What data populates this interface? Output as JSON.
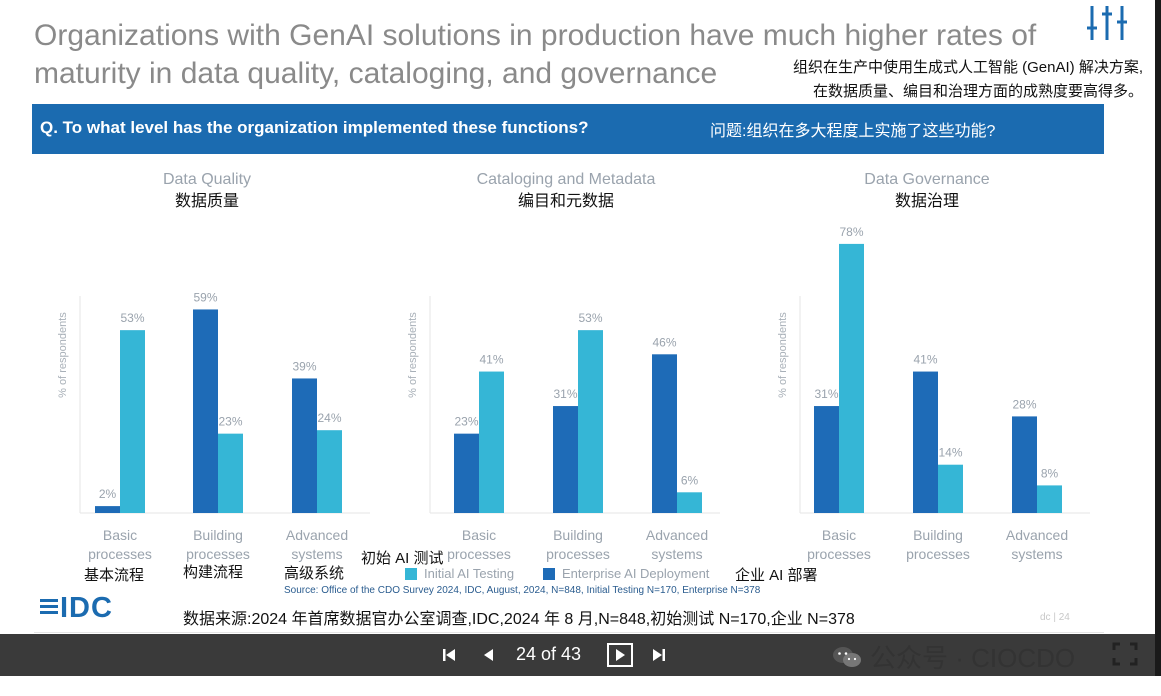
{
  "header": {
    "title_en_line1": "Organizations with GenAI solutions in production have much higher rates of",
    "title_en_line2": "maturity in data quality, cataloging, and governance",
    "title_zh_line1": "组织在生产中使用生成式人工智能 (GenAI) 解决方案,",
    "title_zh_line2": "在数据质量、编目和治理方面的成熟度要高得多。"
  },
  "question": {
    "en": "Q. To what level has the organization implemented these functions?",
    "zh": "问题:组织在多大程度上实施了这些功能?"
  },
  "colors": {
    "initial": "#35b6d6",
    "enterprise": "#1e6bb7",
    "accent": "#1b6bb0"
  },
  "chart_data": [
    {
      "type": "bar",
      "title": "Data Quality",
      "title_zh": "数据质量",
      "ylabel": "% of respondents",
      "categories": [
        "Basic processes",
        "Building processes",
        "Advanced systems"
      ],
      "ylim": [
        0,
        80
      ],
      "grid": false,
      "series": [
        {
          "name": "Enterprise AI Deployment",
          "values": [
            2,
            59,
            39
          ]
        },
        {
          "name": "Initial AI Testing",
          "values": [
            53,
            23,
            24
          ]
        }
      ]
    },
    {
      "type": "bar",
      "title": "Cataloging and Metadata",
      "title_zh": "编目和元数据",
      "ylabel": "% of respondents",
      "categories": [
        "Basic processes",
        "Building processes",
        "Advanced systems"
      ],
      "ylim": [
        0,
        80
      ],
      "grid": false,
      "series": [
        {
          "name": "Enterprise AI Deployment",
          "values": [
            23,
            31,
            46
          ]
        },
        {
          "name": "Initial AI Testing",
          "values": [
            41,
            53,
            6
          ]
        }
      ]
    },
    {
      "type": "bar",
      "title": "Data Governance",
      "title_zh": "数据治理",
      "ylabel": "% of respondents",
      "categories": [
        "Basic processes",
        "Building processes",
        "Advanced systems"
      ],
      "ylim": [
        0,
        80
      ],
      "grid": false,
      "series": [
        {
          "name": "Enterprise AI Deployment",
          "values": [
            31,
            41,
            28
          ]
        },
        {
          "name": "Initial AI Testing",
          "values": [
            78,
            14,
            8
          ]
        }
      ]
    }
  ],
  "category_labels_zh": [
    "基本流程",
    "构建流程",
    "高级系统"
  ],
  "legend": {
    "initial_en": "Initial AI Testing",
    "initial_zh": "初始 AI 测试",
    "enterprise_en": "Enterprise AI Deployment",
    "enterprise_zh": "企业 AI 部署"
  },
  "footer": {
    "source_en": "Source: Office of the CDO Survey 2024, IDC, August, 2024, N=848, Initial Testing N=170, Enterprise N=378",
    "source_zh": "数据来源:2024 年首席数据官办公室调查,IDC,2024 年 8 月,N=848,初始测试 N=170,企业 N=378",
    "brand": "IDC",
    "corner": "dc | 24"
  },
  "toolbar": {
    "first_icon": "skip-first-icon",
    "prev_icon": "prev-icon",
    "page_indicator": "24 of 43",
    "play_icon": "play-icon",
    "next_icon": "skip-last-icon",
    "fullscreen_icon": "fullscreen-icon"
  },
  "watermark": {
    "text": "公众号 · CIOCDO"
  }
}
